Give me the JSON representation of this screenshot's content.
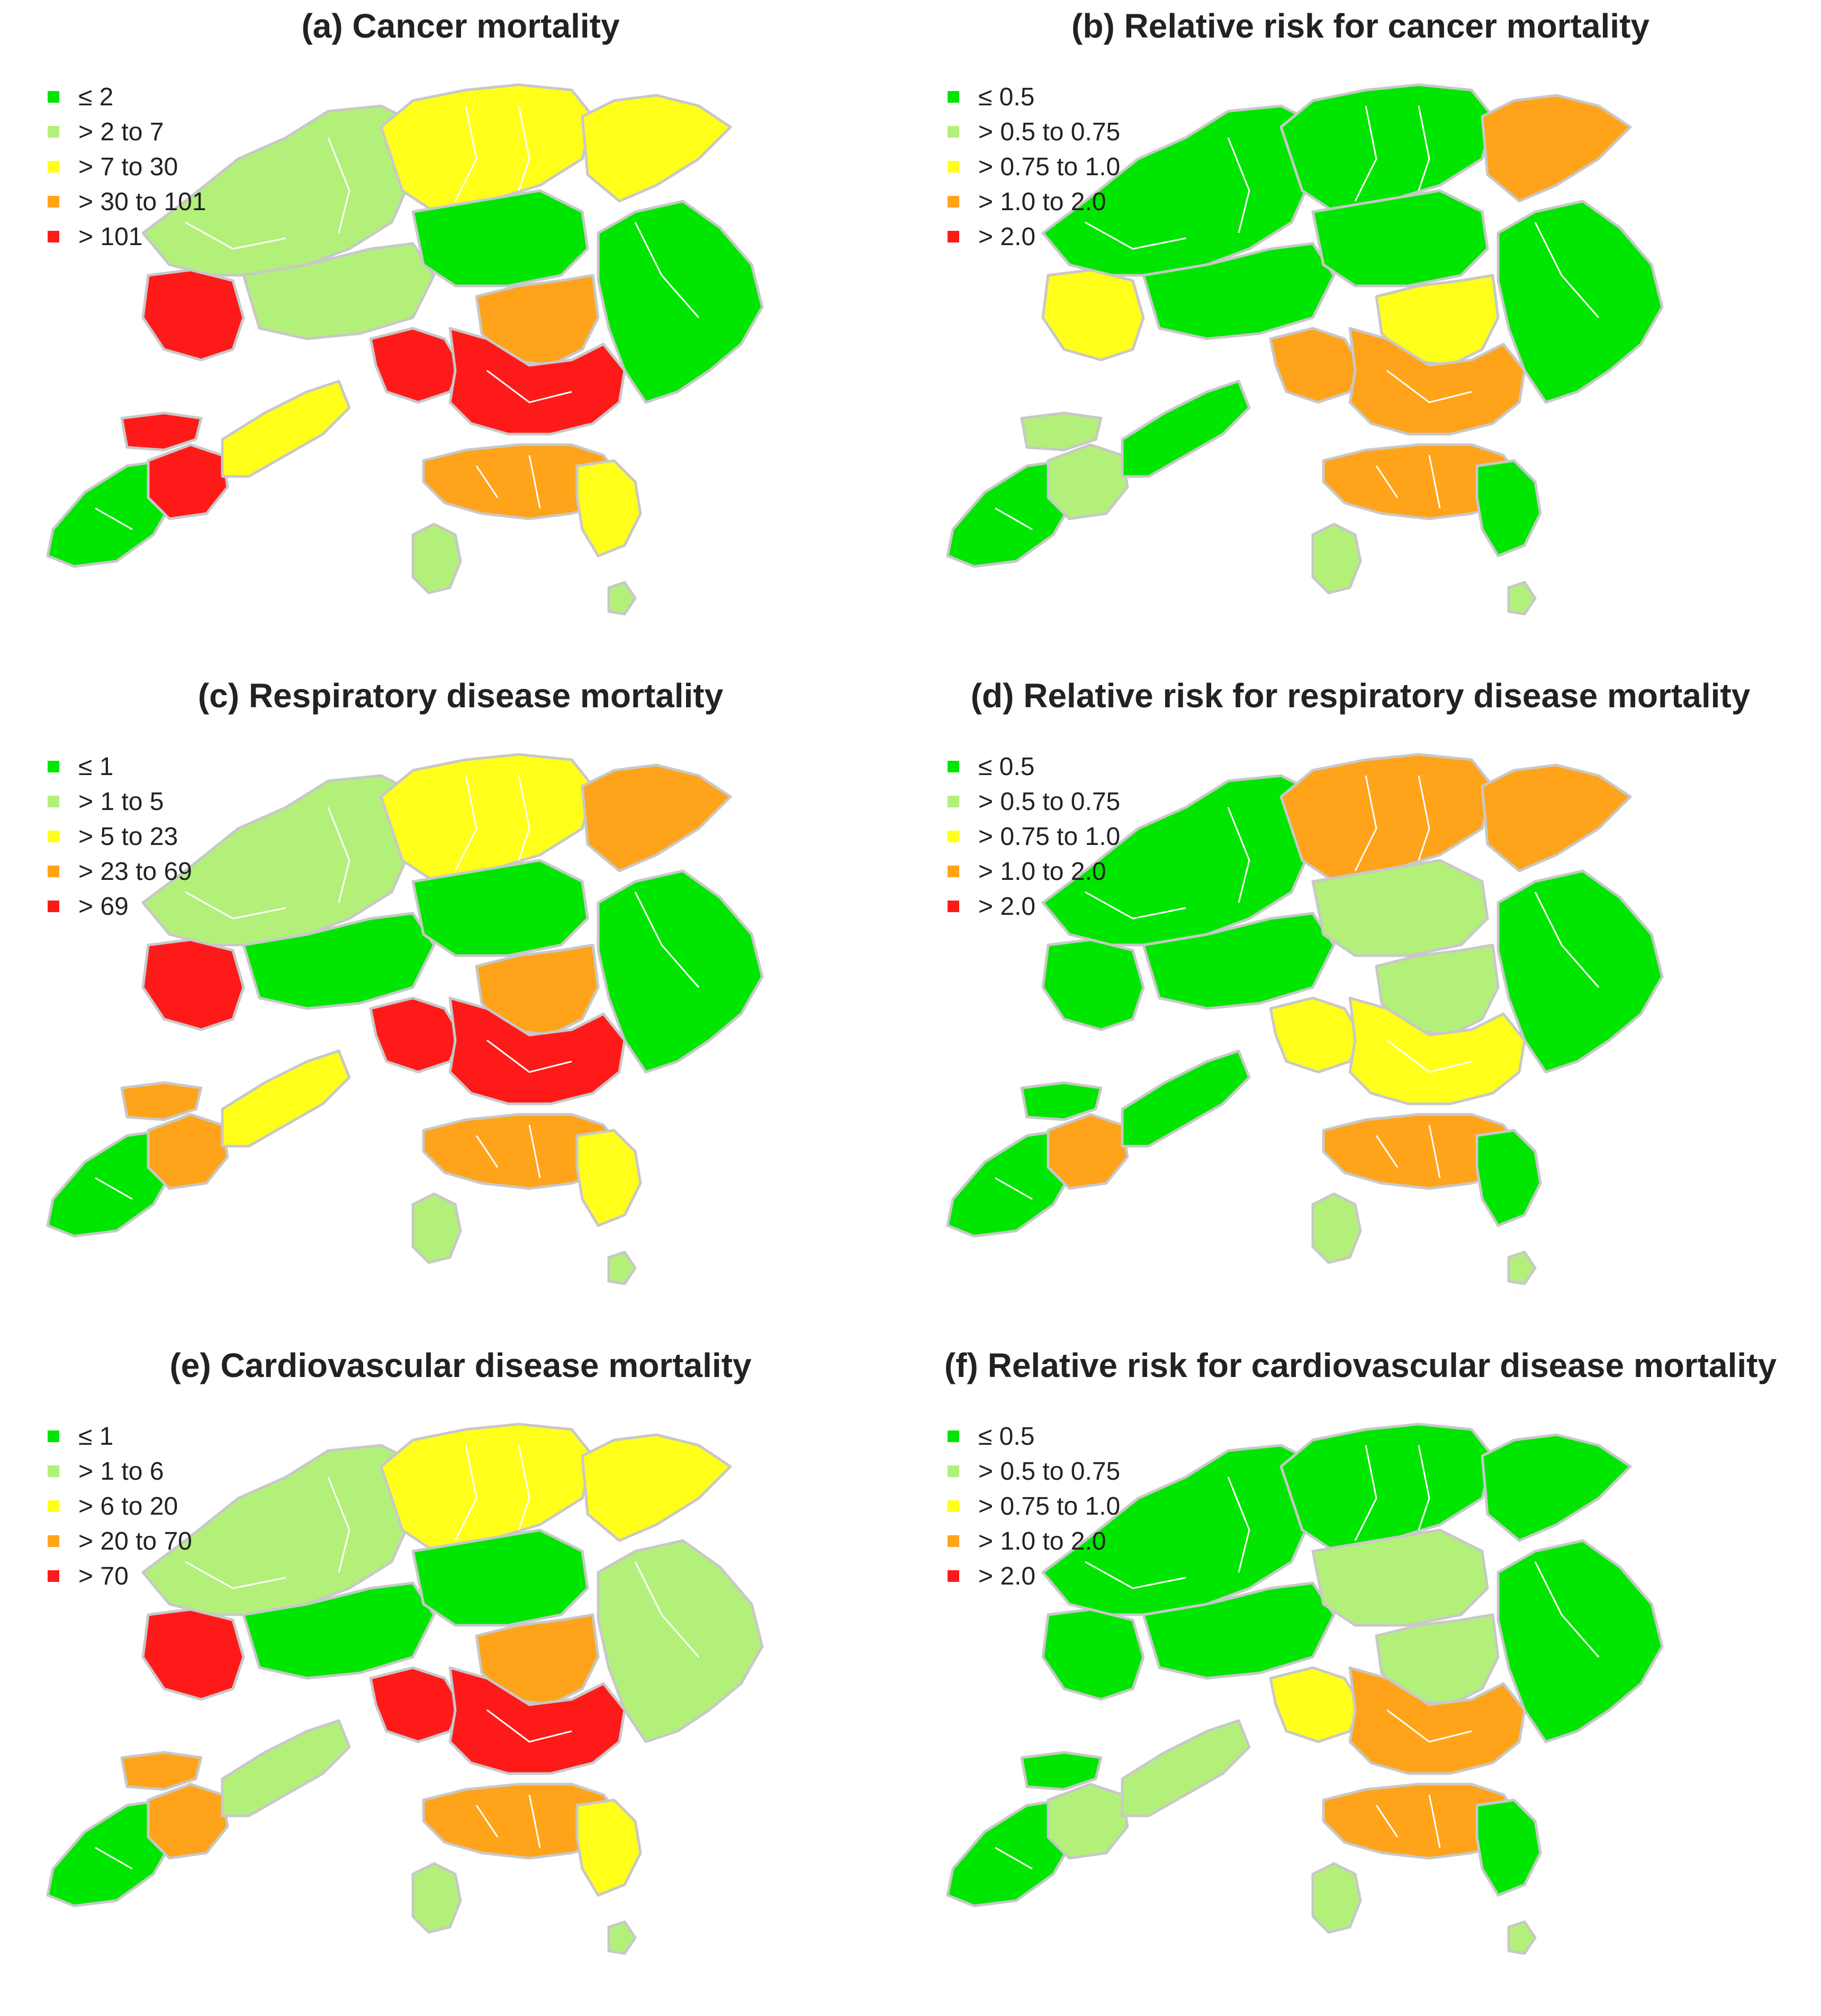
{
  "colors": {
    "c1": "#00e600",
    "c2": "#b3f07a",
    "c3": "#ffff1a",
    "c4": "#ffa31a",
    "c5": "#ff1a1a",
    "boundary": "#c8c8c8"
  },
  "panels": [
    {
      "title": "(a) Cancer mortality",
      "legend": [
        "≤ 2",
        "> 2 to 7",
        "> 7 to 30",
        "> 30 to 101",
        "> 101"
      ],
      "fills": {
        "nt_west": "c2",
        "nt_north": "c3",
        "nt_ne": "c3",
        "tuen_mun": "c5",
        "yuen_long": "c2",
        "tai_po": "c1",
        "sai_kung": "c1",
        "sha_tin": "c4",
        "kowloon": "c5",
        "tsuen_wan": "c5",
        "hk_island": "c4",
        "hk_east": "c3",
        "lantau_w": "c1",
        "lantau_mid": "c5",
        "lantau_ne": "c3",
        "lantau_tip": "c5",
        "lamma": "c2",
        "islets": "c2"
      }
    },
    {
      "title": "(b) Relative risk for cancer mortality",
      "legend": [
        "≤ 0.5",
        "> 0.5 to 0.75",
        "> 0.75 to 1.0",
        "> 1.0 to 2.0",
        "> 2.0"
      ],
      "fills": {
        "nt_west": "c1",
        "nt_north": "c1",
        "nt_ne": "c4",
        "tuen_mun": "c3",
        "yuen_long": "c1",
        "tai_po": "c1",
        "sai_kung": "c1",
        "sha_tin": "c3",
        "kowloon": "c4",
        "tsuen_wan": "c4",
        "hk_island": "c4",
        "hk_east": "c1",
        "lantau_w": "c1",
        "lantau_mid": "c2",
        "lantau_ne": "c1",
        "lantau_tip": "c2",
        "lamma": "c2",
        "islets": "c2"
      }
    },
    {
      "title": "(c) Respiratory disease mortality",
      "legend": [
        "≤ 1",
        "> 1 to 5",
        "> 5 to 23",
        "> 23 to 69",
        "> 69"
      ],
      "fills": {
        "nt_west": "c2",
        "nt_north": "c3",
        "nt_ne": "c4",
        "tuen_mun": "c5",
        "yuen_long": "c1",
        "tai_po": "c1",
        "sai_kung": "c1",
        "sha_tin": "c4",
        "kowloon": "c5",
        "tsuen_wan": "c5",
        "hk_island": "c4",
        "hk_east": "c3",
        "lantau_w": "c1",
        "lantau_mid": "c4",
        "lantau_ne": "c3",
        "lantau_tip": "c4",
        "lamma": "c2",
        "islets": "c2"
      }
    },
    {
      "title": "(d) Relative risk for respiratory disease mortality",
      "legend": [
        "≤ 0.5",
        "> 0.5 to 0.75",
        "> 0.75 to 1.0",
        "> 1.0 to 2.0",
        "> 2.0"
      ],
      "fills": {
        "nt_west": "c1",
        "nt_north": "c4",
        "nt_ne": "c4",
        "tuen_mun": "c1",
        "yuen_long": "c1",
        "tai_po": "c2",
        "sai_kung": "c1",
        "sha_tin": "c2",
        "kowloon": "c3",
        "tsuen_wan": "c3",
        "hk_island": "c4",
        "hk_east": "c1",
        "lantau_w": "c1",
        "lantau_mid": "c4",
        "lantau_ne": "c1",
        "lantau_tip": "c1",
        "lamma": "c2",
        "islets": "c2"
      }
    },
    {
      "title": "(e) Cardiovascular disease mortality",
      "legend": [
        "≤ 1",
        "> 1 to 6",
        "> 6 to 20",
        "> 20 to 70",
        "> 70"
      ],
      "fills": {
        "nt_west": "c2",
        "nt_north": "c3",
        "nt_ne": "c3",
        "tuen_mun": "c5",
        "yuen_long": "c1",
        "tai_po": "c1",
        "sai_kung": "c2",
        "sha_tin": "c4",
        "kowloon": "c5",
        "tsuen_wan": "c5",
        "hk_island": "c4",
        "hk_east": "c3",
        "lantau_w": "c1",
        "lantau_mid": "c4",
        "lantau_ne": "c2",
        "lantau_tip": "c4",
        "lamma": "c2",
        "islets": "c2"
      }
    },
    {
      "title": "(f) Relative risk for cardiovascular disease mortality",
      "legend": [
        "≤ 0.5",
        "> 0.5 to 0.75",
        "> 0.75 to 1.0",
        "> 1.0 to 2.0",
        "> 2.0"
      ],
      "fills": {
        "nt_west": "c1",
        "nt_north": "c1",
        "nt_ne": "c1",
        "tuen_mun": "c1",
        "yuen_long": "c1",
        "tai_po": "c2",
        "sai_kung": "c1",
        "sha_tin": "c2",
        "kowloon": "c4",
        "tsuen_wan": "c3",
        "hk_island": "c4",
        "hk_east": "c1",
        "lantau_w": "c1",
        "lantau_mid": "c2",
        "lantau_ne": "c2",
        "lantau_tip": "c1",
        "lamma": "c2",
        "islets": "c2"
      }
    }
  ]
}
